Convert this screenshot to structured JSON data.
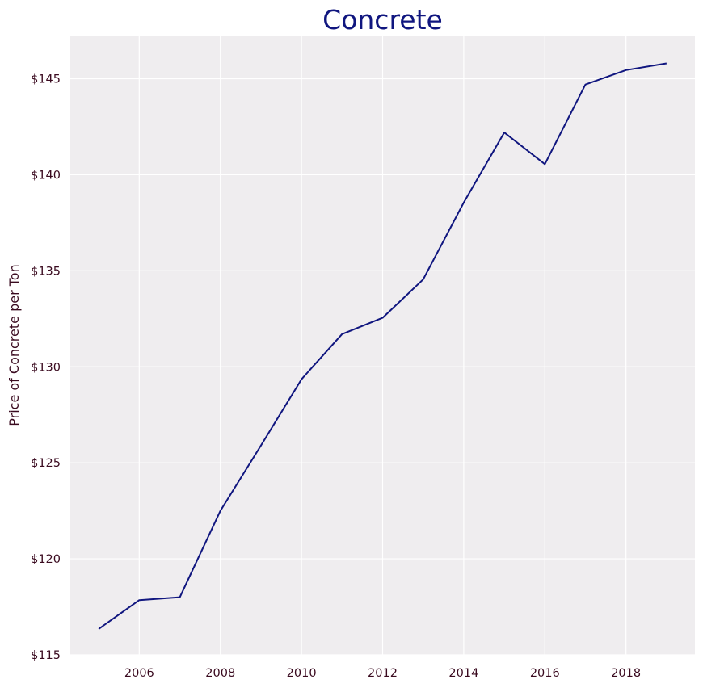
{
  "chart_data": {
    "type": "line",
    "title": "Concrete",
    "xlabel": "",
    "ylabel": "Price of Concrete per Ton",
    "x": [
      2005,
      2006,
      2007,
      2008,
      2009,
      2010,
      2011,
      2012,
      2013,
      2014,
      2015,
      2016,
      2017,
      2018,
      2019
    ],
    "series": [
      {
        "values": [
          116.35,
          117.85,
          118.0,
          122.5,
          125.9,
          129.35,
          131.7,
          132.55,
          134.55,
          138.55,
          142.2,
          140.55,
          144.7,
          145.45,
          145.8
        ]
      }
    ],
    "xticks": [
      2006,
      2008,
      2010,
      2012,
      2014,
      2016,
      2018
    ],
    "xtick_labels": [
      "2006",
      "2008",
      "2010",
      "2012",
      "2014",
      "2016",
      "2018"
    ],
    "yticks": [
      115,
      120,
      125,
      130,
      135,
      140,
      145
    ],
    "ytick_labels": [
      "$115",
      "$120",
      "$125",
      "$130",
      "$135",
      "$140",
      "$145"
    ],
    "xlim": [
      2004.3,
      2019.7
    ],
    "ylim": [
      115.0,
      147.25
    ],
    "grid": true,
    "legend": "none",
    "colors": {
      "line": "#10167f",
      "title": "#10167f",
      "axis_text": "#3a0a1f",
      "plot_background": "#efedef",
      "grid": "#ffffff"
    }
  }
}
